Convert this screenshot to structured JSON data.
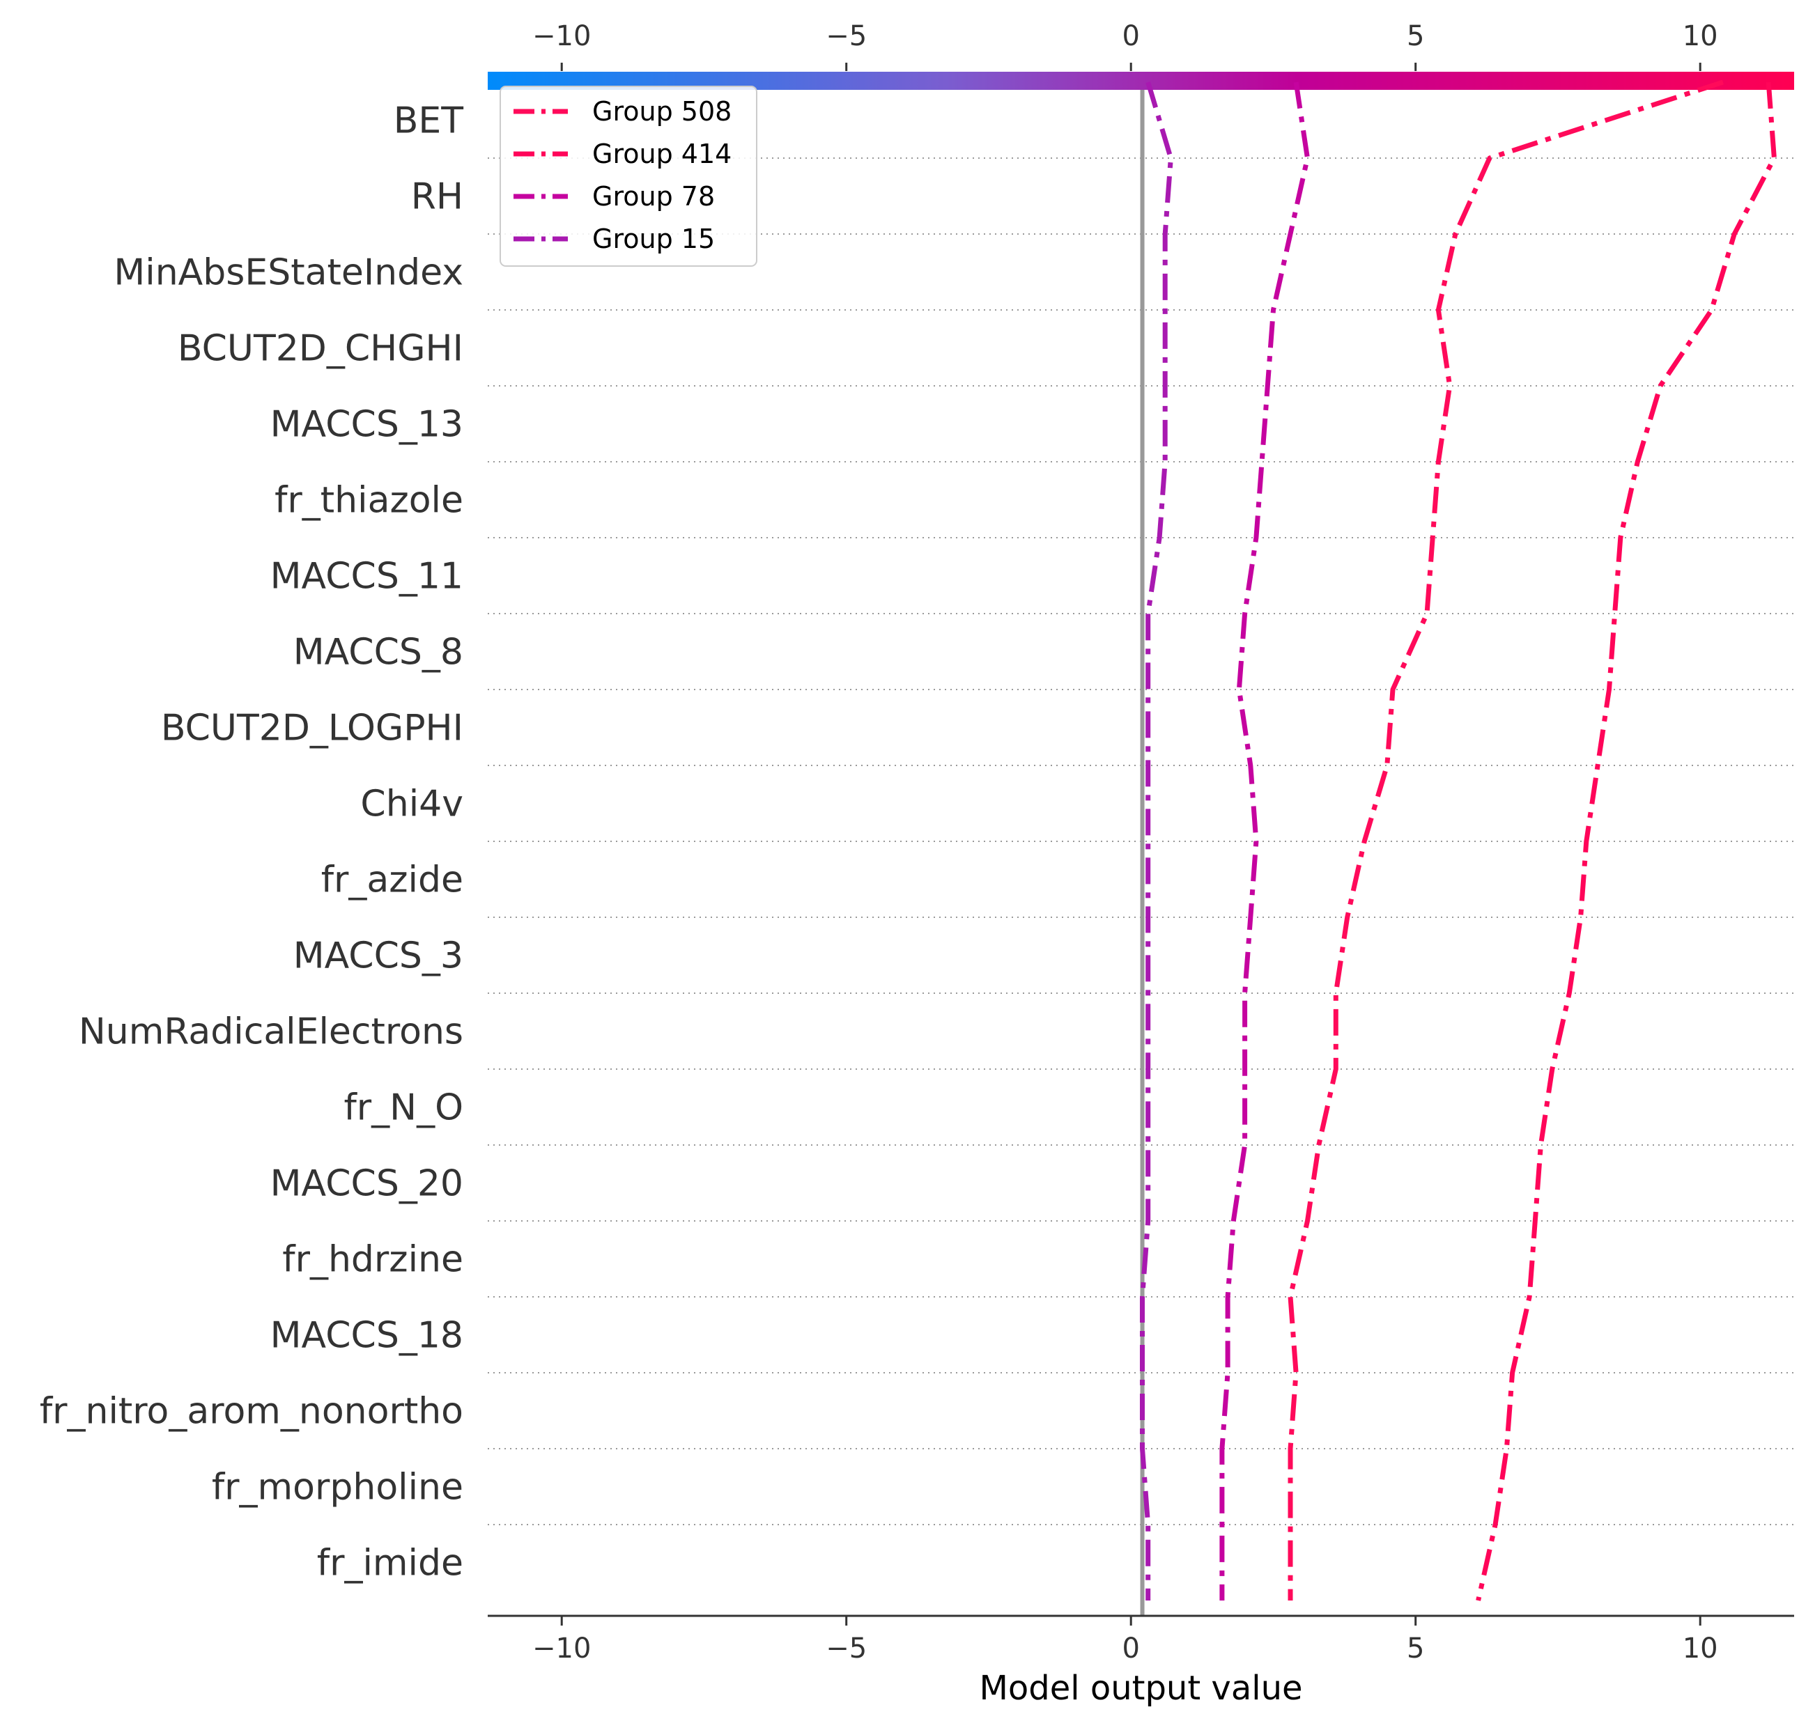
{
  "chart_data": {
    "type": "line",
    "subtype": "shap-decision-plot",
    "xlabel": "Model output value",
    "xlim": [
      -11.3,
      11.65
    ],
    "xticks": [
      -10,
      -5,
      0,
      5,
      10
    ],
    "xtick_labels": [
      "−10",
      "−5",
      "0",
      "5",
      "10"
    ],
    "base_value": 0.2,
    "colormap": [
      "#008bfb",
      "#9a52c2",
      "#c00097",
      "#ff0052"
    ],
    "grid": "horizontal dotted row separators",
    "legend_position": "top-left",
    "features": [
      "BET",
      "RH",
      "MinAbsEStateIndex",
      "BCUT2D_CHGHI",
      "MACCS_13",
      "fr_thiazole",
      "MACCS_11",
      "MACCS_8",
      "BCUT2D_LOGPHI",
      "Chi4v",
      "fr_azide",
      "MACCS_3",
      "NumRadicalElectrons",
      "fr_N_O",
      "MACCS_20",
      "fr_hdrzine",
      "MACCS_18",
      "fr_nitro_arom_nonortho",
      "fr_morpholine",
      "fr_imide"
    ],
    "series": [
      {
        "name": "Group 508",
        "color": "#ff0a5a",
        "x": [
          10.4,
          6.3,
          5.7,
          5.4,
          5.6,
          5.4,
          5.3,
          5.2,
          4.6,
          4.5,
          4.1,
          3.8,
          3.6,
          3.6,
          3.3,
          3.1,
          2.8,
          2.9,
          2.8,
          2.8,
          2.8
        ]
      },
      {
        "name": "Group 414",
        "color": "#ff0559",
        "x": [
          11.2,
          11.3,
          10.6,
          10.2,
          9.3,
          8.9,
          8.6,
          8.5,
          8.4,
          8.2,
          8.0,
          7.9,
          7.7,
          7.4,
          7.2,
          7.1,
          7.0,
          6.7,
          6.6,
          6.4,
          6.1
        ]
      },
      {
        "name": "Group 78",
        "color": "#c5039f",
        "x": [
          2.9,
          3.1,
          2.8,
          2.5,
          2.4,
          2.3,
          2.2,
          2.0,
          1.9,
          2.1,
          2.2,
          2.1,
          2.0,
          2.0,
          2.0,
          1.8,
          1.7,
          1.7,
          1.6,
          1.6,
          1.6
        ]
      },
      {
        "name": "Group 15",
        "color": "#a819b0",
        "x": [
          0.3,
          0.7,
          0.6,
          0.6,
          0.6,
          0.6,
          0.5,
          0.3,
          0.3,
          0.3,
          0.3,
          0.3,
          0.3,
          0.3,
          0.3,
          0.3,
          0.2,
          0.2,
          0.2,
          0.3,
          0.3
        ]
      }
    ]
  }
}
